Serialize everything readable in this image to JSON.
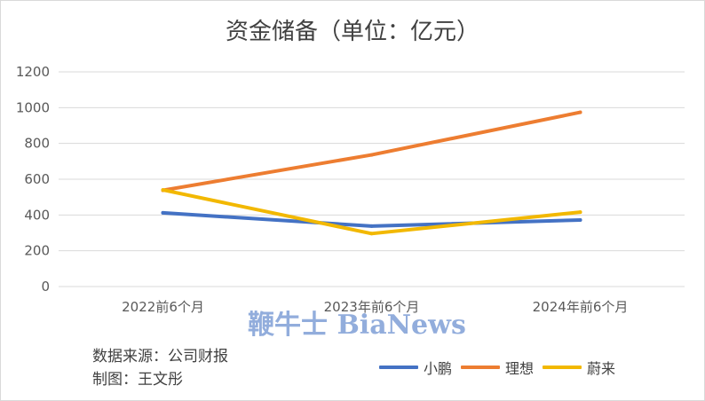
{
  "chart_data": {
    "type": "line",
    "title": "资金储备（单位：亿元）",
    "categories": [
      "2022前6个月",
      "2023年前6个月",
      "2024年前6个月"
    ],
    "series": [
      {
        "name": "小鹏",
        "values": [
          412,
          338,
          372
        ],
        "color": "#4472c4"
      },
      {
        "name": "理想",
        "values": [
          538,
          736,
          974
        ],
        "color": "#ed7d31"
      },
      {
        "name": "蔚来",
        "values": [
          540,
          296,
          416
        ],
        "color": "#f2b800"
      }
    ],
    "ylim": [
      0,
      1200
    ],
    "yticks": [
      0,
      200,
      400,
      600,
      800,
      1000,
      1200
    ],
    "grid": true,
    "legend_position": "bottom-right"
  },
  "footer": {
    "source": "数据来源：公司财报",
    "author": "制图：王文彤"
  },
  "watermark": "鞭牛士 BiaNews"
}
